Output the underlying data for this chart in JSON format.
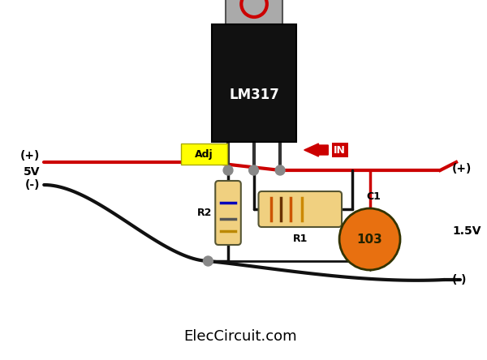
{
  "bg_color": "#ffffff",
  "title_text": "ElecCircuit.com",
  "title_fontsize": 13,
  "title_color": "#000000",
  "ic_body_color": "#111111",
  "ic_label": "LM317",
  "ic_label_color": "#ffffff",
  "adj_label": "Adj",
  "in_label": "IN",
  "label_5v_plus": "(+)",
  "label_5v": "5V",
  "label_5v_minus": "(-)",
  "label_out_plus": "(+)",
  "label_out_voltage": "1.5V",
  "label_out_minus": "(-)",
  "r1_label": "R1",
  "r2_label": "R2",
  "c1_label": "C1",
  "c1_value": "103",
  "wire_red_color": "#cc0000",
  "wire_black_color": "#111111",
  "capacitor_color": "#e87010",
  "node_color": "#888888"
}
